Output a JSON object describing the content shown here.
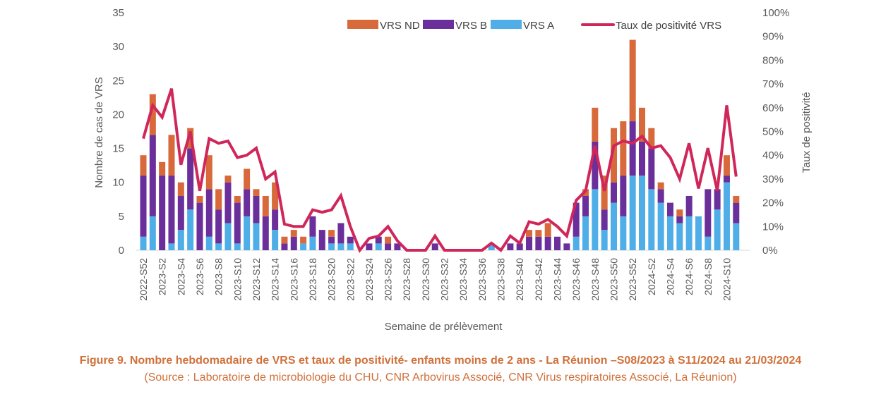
{
  "chart_data": {
    "type": "bar",
    "subtype": "stacked-bar-with-line",
    "title": "Figure 9. Nombre hebdomadaire de VRS et taux de positivité- enfants moins de 2 ans - La Réunion –S08/2023 à S11/2024 au 21/03/2024",
    "subtitle": "(Source : Laboratoire de microbiologie du CHU, CNR Arbovirus Associé, CNR Virus respiratoires Associé, La Réunion)",
    "xlabel": "Semaine de prélèvement",
    "ylabel": "Nombre de cas de VRS",
    "y2label": "Taux de positivité",
    "ylim": [
      0,
      35
    ],
    "yticks": [
      "0",
      "5",
      "10",
      "15",
      "20",
      "25",
      "30",
      "35"
    ],
    "y2lim": [
      0,
      100
    ],
    "y2ticks": [
      "0%",
      "10%",
      "20%",
      "30%",
      "40%",
      "50%",
      "60%",
      "70%",
      "80%",
      "90%",
      "100%"
    ],
    "grid": false,
    "legend_position": "top",
    "legend": [
      "VRS ND",
      "VRS B",
      "VRS A",
      "Taux de positivité VRS"
    ],
    "colors": {
      "VRS A": "#4faee8",
      "VRS B": "#6a2f9a",
      "VRS ND": "#d8693a",
      "Taux de positivité VRS": "#d0275a"
    },
    "x_tick_labels": [
      "2022-S52",
      "2023-S2",
      "2023-S4",
      "2023-S6",
      "2023-S8",
      "2023-S10",
      "2023-S12",
      "2023-S14",
      "2023-S16",
      "2023-S18",
      "2023-S20",
      "2023-S22",
      "2023-S24",
      "2023-S26",
      "2023-S28",
      "2023-S30",
      "2023-S32",
      "2023-S34",
      "2023-S36",
      "2023-S38",
      "2023-S40",
      "2023-S42",
      "2023-S44",
      "2023-S46",
      "2023-S48",
      "2023-S50",
      "2023-S52",
      "2024-S2",
      "2024-S4",
      "2024-S6",
      "2024-S8",
      "2024-S10"
    ],
    "categories": [
      "2022-S52",
      "2023-S1",
      "2023-S2",
      "2023-S3",
      "2023-S4",
      "2023-S5",
      "2023-S6",
      "2023-S7",
      "2023-S8",
      "2023-S9",
      "2023-S10",
      "2023-S11",
      "2023-S12",
      "2023-S13",
      "2023-S14",
      "2023-S15",
      "2023-S16",
      "2023-S17",
      "2023-S18",
      "2023-S19",
      "2023-S20",
      "2023-S21",
      "2023-S22",
      "2023-S23",
      "2023-S24",
      "2023-S25",
      "2023-S26",
      "2023-S27",
      "2023-S28",
      "2023-S29",
      "2023-S30",
      "2023-S31",
      "2023-S32",
      "2023-S33",
      "2023-S34",
      "2023-S35",
      "2023-S36",
      "2023-S37",
      "2023-S38",
      "2023-S39",
      "2023-S40",
      "2023-S41",
      "2023-S42",
      "2023-S43",
      "2023-S44",
      "2023-S45",
      "2023-S46",
      "2023-S47",
      "2023-S48",
      "2023-S49",
      "2023-S50",
      "2023-S51",
      "2023-S52",
      "2024-S1",
      "2024-S2",
      "2024-S3",
      "2024-S4",
      "2024-S5",
      "2024-S6",
      "2024-S7",
      "2024-S8",
      "2024-S9",
      "2024-S10",
      "2024-S11"
    ],
    "series": [
      {
        "name": "VRS A",
        "axis": "left",
        "type": "bar",
        "values": [
          2,
          5,
          0,
          1,
          3,
          6,
          0,
          2,
          1,
          4,
          1,
          5,
          4,
          0,
          3,
          0,
          0,
          1,
          2,
          0,
          1,
          1,
          1,
          0,
          0,
          1,
          0,
          0,
          0,
          0,
          0,
          0,
          0,
          0,
          0,
          0,
          0,
          1,
          0,
          0,
          0,
          0,
          0,
          0,
          0,
          0,
          2,
          5,
          9,
          3,
          7,
          5,
          11,
          11,
          9,
          7,
          5,
          4,
          5,
          5,
          2,
          6,
          10,
          4
        ]
      },
      {
        "name": "VRS B",
        "axis": "left",
        "type": "bar",
        "values": [
          9,
          12,
          11,
          10,
          5,
          9,
          7,
          7,
          5,
          6,
          6,
          4,
          4,
          5,
          3,
          1,
          2,
          0,
          3,
          3,
          1,
          3,
          1,
          0,
          1,
          1,
          1,
          1,
          0,
          0,
          0,
          1,
          0,
          0,
          0,
          0,
          0,
          0,
          0,
          1,
          1,
          2,
          2,
          2,
          2,
          1,
          5,
          3,
          7,
          3,
          3,
          6,
          8,
          5,
          6,
          2,
          2,
          1,
          3,
          0,
          7,
          3,
          1,
          3
        ]
      },
      {
        "name": "VRS ND",
        "axis": "left",
        "type": "bar",
        "values": [
          3,
          6,
          2,
          6,
          2,
          3,
          1,
          5,
          3,
          1,
          1,
          3,
          1,
          3,
          4,
          1,
          1,
          1,
          0,
          0,
          1,
          0,
          0,
          0,
          0,
          0,
          1,
          0,
          0,
          0,
          0,
          0,
          0,
          0,
          0,
          0,
          0,
          0,
          0,
          0,
          0,
          1,
          1,
          2,
          0,
          0,
          0,
          1,
          5,
          5,
          8,
          8,
          12,
          5,
          3,
          1,
          0,
          1,
          0,
          0,
          0,
          0,
          3,
          1
        ]
      },
      {
        "name": "Taux de positivité VRS",
        "axis": "right",
        "type": "line",
        "unit": "%",
        "values": [
          47,
          61,
          56,
          68,
          36,
          50,
          25,
          47,
          45,
          46,
          39,
          40,
          43,
          30,
          33,
          11,
          10,
          10,
          17,
          16,
          17,
          23,
          10,
          0,
          5,
          6,
          10,
          4,
          0,
          0,
          0,
          6,
          0,
          0,
          0,
          0,
          0,
          3,
          0,
          6,
          3,
          12,
          11,
          13,
          10,
          6,
          21,
          25,
          44,
          25,
          44,
          46,
          45,
          48,
          43,
          44,
          39,
          30,
          45,
          26,
          43,
          25,
          61,
          31
        ]
      }
    ]
  }
}
